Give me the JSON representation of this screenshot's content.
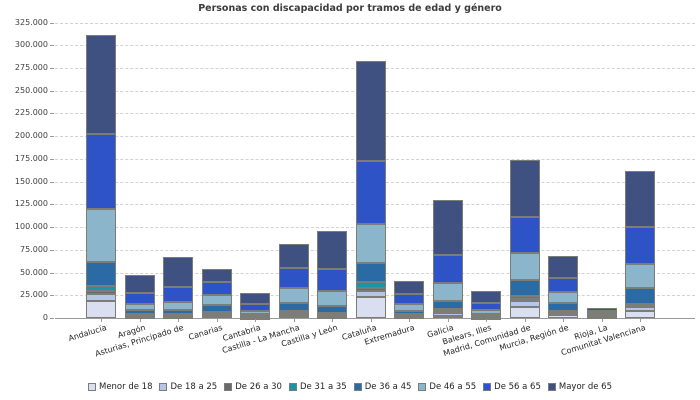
{
  "title": "Personas con discapacidad por tramos de edad y género",
  "chart_data": {
    "type": "bar",
    "stacked": true,
    "title": "Personas con discapacidad por tramos de edad y género",
    "xlabel": "",
    "ylabel": "",
    "ylim": [
      0,
      325000
    ],
    "ytick_step": 25000,
    "ytick_labels": [
      "0",
      "25.000",
      "50.000",
      "75.000",
      "100.000",
      "125.000",
      "150.000",
      "175.000",
      "200.000",
      "225.000",
      "250.000",
      "275.000",
      "300.000",
      "325.000"
    ],
    "grid": "horizontal-dashed",
    "legend_position": "bottom",
    "categories": [
      "Andalucía",
      "Aragón",
      "Asturias, Principado de",
      "Canarias",
      "Cantabria",
      "Castilla - La Mancha",
      "Castilla y León",
      "Cataluña",
      "Extremadura",
      "Galicia",
      "Balears, Illes",
      "Madrid, Comunidad de",
      "Murcia, Región de",
      "Rioja, La",
      "Comunitat Valenciana"
    ],
    "series": [
      {
        "name": "Menor de 18",
        "color": "#d9def0",
        "values": [
          19000,
          1500,
          1000,
          2000,
          500,
          2000,
          1300,
          23000,
          1000,
          2600,
          500,
          12400,
          3000,
          1000,
          7700
        ]
      },
      {
        "name": "De 18 a 25",
        "color": "#b5c6e6",
        "values": [
          7000,
          1000,
          1000,
          1300,
          500,
          2500,
          1300,
          6300,
          1000,
          2600,
          500,
          6300,
          1500,
          500,
          4000
        ]
      },
      {
        "name": "De 26 a 30",
        "color": "#696a6c",
        "values": [
          4000,
          800,
          1000,
          1300,
          400,
          1500,
          1300,
          3800,
          1000,
          2200,
          500,
          2600,
          1500,
          400,
          1500
        ]
      },
      {
        "name": "De 31 a 35",
        "color": "#1b93a9",
        "values": [
          5000,
          1000,
          1200,
          2000,
          500,
          1500,
          1500,
          6000,
          1000,
          2200,
          500,
          3000,
          1800,
          400,
          2400
        ]
      },
      {
        "name": "De 36 a 45",
        "color": "#2a6ba6",
        "values": [
          27000,
          4000,
          4500,
          8000,
          2000,
          9500,
          8000,
          21000,
          4000,
          9000,
          2500,
          18000,
          8300,
          1300,
          17000
        ]
      },
      {
        "name": "De 46 a 55",
        "color": "#8ab5cb",
        "values": [
          58000,
          7500,
          9000,
          11000,
          3500,
          16000,
          16500,
          43000,
          7500,
          20000,
          4700,
          29000,
          12200,
          1500,
          27000
        ]
      },
      {
        "name": "De 56 a 65",
        "color": "#2d53c7",
        "values": [
          82000,
          12000,
          16500,
          13500,
          8000,
          21500,
          24000,
          70000,
          10500,
          31000,
          7800,
          40000,
          15400,
          2200,
          41000
        ]
      },
      {
        "name": "Mayor de 65",
        "color": "#3f5180",
        "values": [
          109000,
          19500,
          33000,
          14500,
          12000,
          27000,
          41500,
          110000,
          15000,
          60000,
          13000,
          63000,
          24700,
          3600,
          61000
        ]
      }
    ]
  }
}
